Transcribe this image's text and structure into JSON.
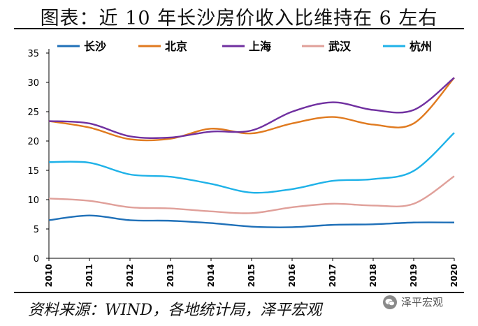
{
  "title": "图表：近 10 年长沙房价收入比维持在 6 左右",
  "source": "资料来源：WIND，各地统计局，泽平宏观",
  "watermark": "泽平宏观",
  "chart_data": {
    "type": "line",
    "x": [
      "2010",
      "2011",
      "2012",
      "2013",
      "2014",
      "2015",
      "2016",
      "2017",
      "2018",
      "2019",
      "2020"
    ],
    "ylim": [
      0,
      35
    ],
    "yticks": [
      0,
      5,
      10,
      15,
      20,
      25,
      30,
      35
    ],
    "legend_position": "top",
    "grid": false,
    "series": [
      {
        "name": "长沙",
        "color": "#1f70b8",
        "values": [
          6.5,
          7.3,
          6.5,
          6.4,
          6.0,
          5.4,
          5.3,
          5.7,
          5.8,
          6.1,
          6.1
        ]
      },
      {
        "name": "北京",
        "color": "#e07a1f",
        "values": [
          23.4,
          22.3,
          20.3,
          20.4,
          22.1,
          21.3,
          23.0,
          24.1,
          22.8,
          23.0,
          30.8
        ]
      },
      {
        "name": "上海",
        "color": "#7030a0",
        "values": [
          23.4,
          23.0,
          20.8,
          20.6,
          21.6,
          21.8,
          25.0,
          26.6,
          25.3,
          25.3,
          30.8
        ]
      },
      {
        "name": "武汉",
        "color": "#e0a09a",
        "values": [
          10.2,
          9.8,
          8.7,
          8.5,
          8.0,
          7.7,
          8.7,
          9.3,
          9.0,
          9.3,
          14.0
        ]
      },
      {
        "name": "杭州",
        "color": "#1fb2e8",
        "values": [
          16.4,
          16.3,
          14.3,
          13.9,
          12.7,
          11.2,
          11.8,
          13.2,
          13.5,
          14.9,
          21.4
        ]
      }
    ]
  }
}
